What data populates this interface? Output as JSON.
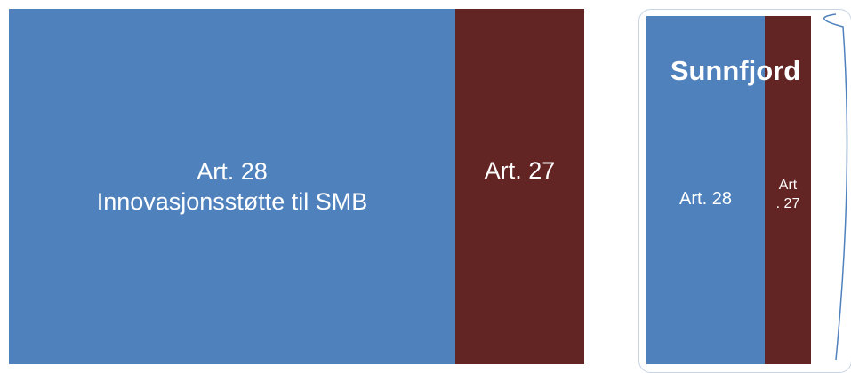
{
  "left": {
    "blocks": [
      {
        "lines": [
          "Art. 28",
          "Innovasjonsstøtte til SMB"
        ]
      },
      {
        "lines": [
          "Art. 27"
        ]
      }
    ]
  },
  "right": {
    "title": "Sunnfjord",
    "blocks": [
      {
        "lines": [
          "Art. 28"
        ]
      },
      {
        "lines": [
          "Art",
          ". 27"
        ]
      }
    ]
  }
}
